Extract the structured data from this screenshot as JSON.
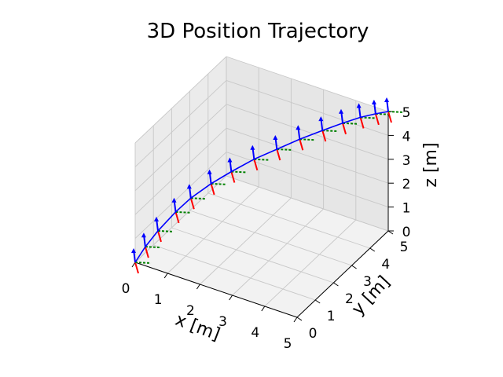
{
  "chart_data": {
    "type": "line",
    "title": "3D Position Trajectory",
    "xlabel": "x [m]",
    "ylabel": "y [m]",
    "zlabel": "z [m]",
    "xlim": [
      0,
      5
    ],
    "ylim": [
      0,
      5
    ],
    "zlim": [
      0,
      5
    ],
    "xticks": [
      "0",
      "1",
      "2",
      "3",
      "4",
      "5"
    ],
    "yticks": [
      "0",
      "1",
      "2",
      "3",
      "4",
      "5"
    ],
    "zticks": [
      "0",
      "1",
      "2",
      "3",
      "4",
      "5"
    ],
    "grid": true,
    "series": [
      {
        "x": [
          0.0,
          0.2,
          0.45,
          0.8,
          1.1,
          1.5,
          1.9,
          2.35,
          2.8,
          3.25,
          3.7,
          4.1,
          4.45,
          4.75,
          5.0
        ],
        "y": [
          0.0,
          0.2,
          0.45,
          0.8,
          1.1,
          1.5,
          1.9,
          2.35,
          2.8,
          3.25,
          3.7,
          4.1,
          4.45,
          4.75,
          5.0
        ],
        "z": [
          0.0,
          0.6,
          1.2,
          1.9,
          2.4,
          2.9,
          3.3,
          3.7,
          4.0,
          4.3,
          4.55,
          4.75,
          4.9,
          4.97,
          5.0
        ],
        "color": "#0000ff"
      }
    ],
    "frame_axis_colors": {
      "x_axis": "#ff0000",
      "y_axis": "#008000",
      "z_axis": "#0000ff"
    }
  }
}
